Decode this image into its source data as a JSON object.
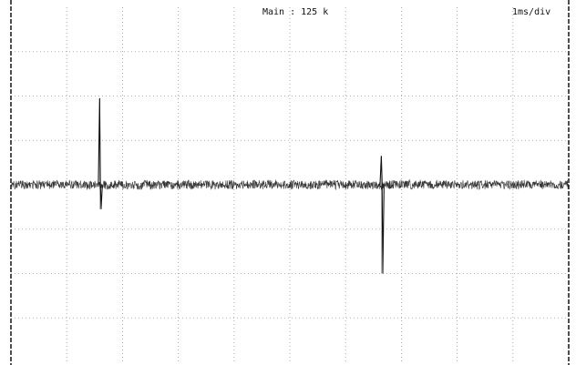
{
  "display": {
    "memory_label": "Main : 125 k",
    "timebase_label": "1ms/div"
  },
  "scope": {
    "grid": {
      "horizontal_divisions": 10,
      "vertical_divisions": 8,
      "style": "dotted"
    },
    "trace": {
      "baseline_level_div": 0,
      "noise_band_div": 0.2,
      "glitches": [
        {
          "time_div": 1.6,
          "peak_div": 1.95,
          "trough_div": -0.55
        },
        {
          "time_div": 6.65,
          "peak_div": 0.65,
          "trough_div": -2.0
        }
      ]
    },
    "colors": {
      "background": "#ffffff",
      "grid": "#9a9a9a",
      "frame": "#222222",
      "trace": "#111111"
    }
  }
}
